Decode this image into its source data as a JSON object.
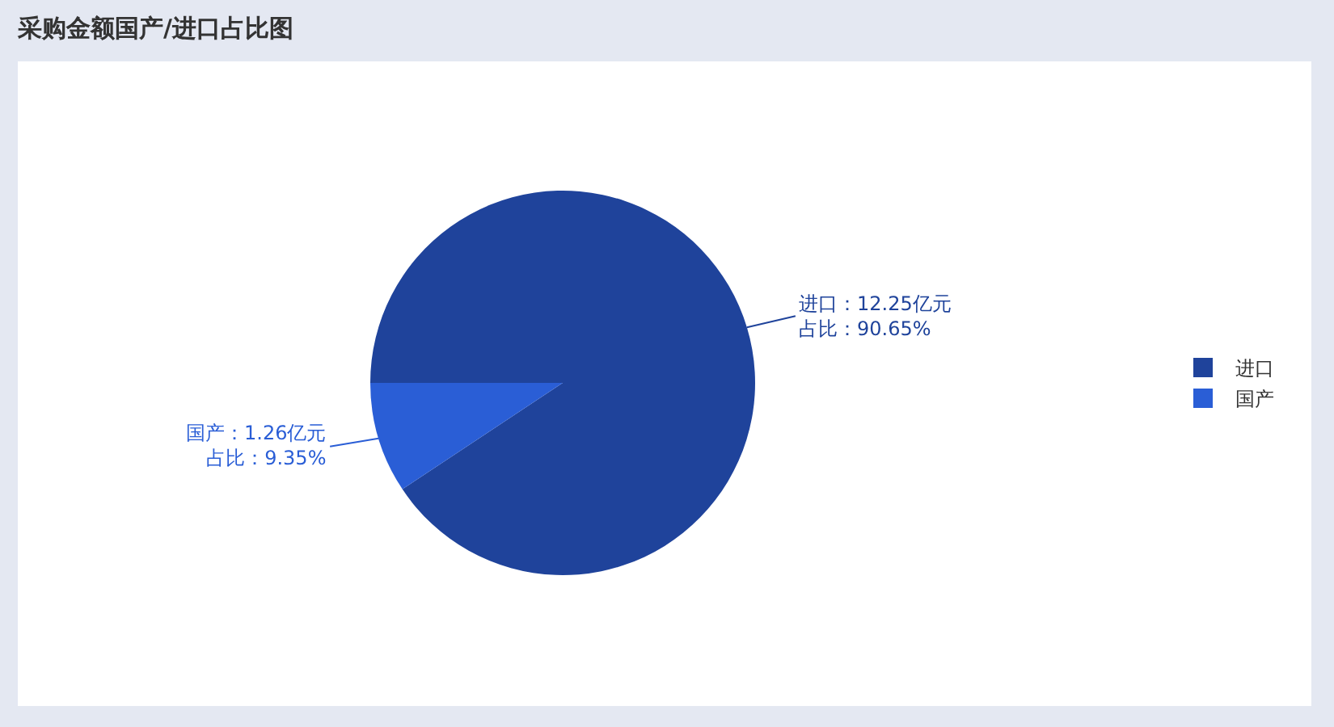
{
  "chart_data": {
    "type": "pie",
    "title": "采购金额国产/进口占比图",
    "categories": [
      "进口",
      "国产"
    ],
    "values": [
      12.25,
      1.26
    ],
    "colors": [
      "#1f439b",
      "#2a5ed6"
    ],
    "value_labels": [
      "进口：12.25亿元占比：90.65%",
      "国产：1.26亿元占比：9.35%"
    ],
    "legend": "right"
  }
}
